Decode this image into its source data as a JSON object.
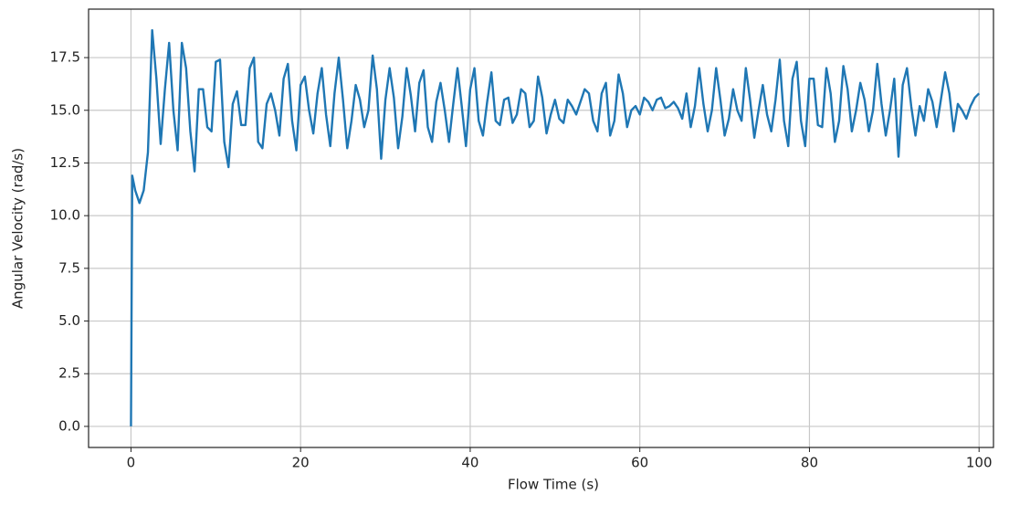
{
  "chart_data": {
    "type": "line",
    "xlabel": "Flow Time (s)",
    "ylabel": "Angular Velocity (rad/s)",
    "color": "#1f77b4",
    "grid": true,
    "xlim": [
      -5,
      101.7
    ],
    "ylim": [
      -1,
      19.8
    ],
    "xticks": [
      0,
      20,
      40,
      60,
      80,
      100
    ],
    "yticks": [
      {
        "value": 0,
        "label": "0.0"
      },
      2.5,
      {
        "value": 5,
        "label": "5.0"
      },
      7.5,
      {
        "value": 10,
        "label": "10.0"
      },
      12.5,
      {
        "value": 15,
        "label": "15.0"
      },
      17.5
    ],
    "x": [
      0,
      0.15,
      0.5,
      1,
      1.5,
      2,
      2.5,
      3,
      3.5,
      4,
      4.5,
      5,
      5.5,
      6,
      6.5,
      7,
      7.5,
      8,
      8.5,
      9,
      9.5,
      10,
      10.5,
      11,
      11.5,
      12,
      12.5,
      13,
      13.5,
      14,
      14.5,
      15,
      15.5,
      16,
      16.5,
      17,
      17.5,
      18,
      18.5,
      19,
      19.5,
      20,
      20.5,
      21,
      21.5,
      22,
      22.5,
      23,
      23.5,
      24,
      24.5,
      25,
      25.5,
      26,
      26.5,
      27,
      27.5,
      28,
      28.5,
      29,
      29.5,
      30,
      30.5,
      31,
      31.5,
      32,
      32.5,
      33,
      33.5,
      34,
      34.5,
      35,
      35.5,
      36,
      36.5,
      37,
      37.5,
      38,
      38.5,
      39,
      39.5,
      40,
      40.5,
      41,
      41.5,
      42,
      42.5,
      43,
      43.5,
      44,
      44.5,
      45,
      45.5,
      46,
      46.5,
      47,
      47.5,
      48,
      48.5,
      49,
      49.5,
      50,
      50.5,
      51,
      51.5,
      52,
      52.5,
      53,
      53.5,
      54,
      54.5,
      55,
      55.5,
      56,
      56.5,
      57,
      57.5,
      58,
      58.5,
      59,
      59.5,
      60,
      60.5,
      61,
      61.5,
      62,
      62.5,
      63,
      63.5,
      64,
      64.5,
      65,
      65.5,
      66,
      66.5,
      67,
      67.5,
      68,
      68.5,
      69,
      69.5,
      70,
      70.5,
      71,
      71.5,
      72,
      72.5,
      73,
      73.5,
      74,
      74.5,
      75,
      75.5,
      76,
      76.5,
      77,
      77.5,
      78,
      78.5,
      79,
      79.5,
      80,
      80.5,
      81,
      81.5,
      82,
      82.5,
      83,
      83.5,
      84,
      84.5,
      85,
      85.5,
      86,
      86.5,
      87,
      87.5,
      88,
      88.5,
      89,
      89.5,
      90,
      90.5,
      91,
      91.5,
      92,
      92.5,
      93,
      93.5,
      94,
      94.5,
      95,
      95.5,
      96,
      96.5,
      97,
      97.5,
      98,
      98.5,
      99,
      99.5,
      100
    ],
    "values": [
      0,
      11.9,
      11.2,
      10.6,
      11.2,
      13.0,
      18.8,
      16.5,
      13.4,
      16.0,
      18.2,
      15.0,
      13.1,
      18.2,
      17.0,
      14.0,
      12.1,
      16.0,
      16.0,
      14.2,
      14.0,
      17.3,
      17.4,
      13.5,
      12.3,
      15.3,
      15.9,
      14.3,
      14.3,
      17.0,
      17.5,
      13.5,
      13.2,
      15.3,
      15.8,
      15.0,
      13.8,
      16.5,
      17.2,
      14.5,
      13.1,
      16.2,
      16.6,
      15.0,
      13.9,
      15.8,
      17.0,
      14.8,
      13.3,
      15.8,
      17.5,
      15.5,
      13.2,
      14.5,
      16.2,
      15.5,
      14.2,
      15.0,
      17.6,
      16.0,
      12.7,
      15.5,
      17.0,
      15.6,
      13.2,
      14.7,
      17.0,
      15.7,
      14.0,
      16.3,
      16.9,
      14.2,
      13.5,
      15.4,
      16.3,
      15.0,
      13.5,
      15.3,
      17.0,
      15.2,
      13.3,
      16.0,
      17.0,
      14.5,
      13.8,
      15.4,
      16.8,
      14.5,
      14.3,
      15.5,
      15.6,
      14.4,
      14.8,
      16.0,
      15.8,
      14.2,
      14.5,
      16.6,
      15.6,
      13.9,
      14.8,
      15.5,
      14.6,
      14.4,
      15.5,
      15.2,
      14.8,
      15.4,
      16.0,
      15.8,
      14.5,
      14.0,
      15.8,
      16.3,
      13.8,
      14.5,
      16.7,
      15.8,
      14.2,
      15.0,
      15.2,
      14.8,
      15.6,
      15.4,
      15.0,
      15.5,
      15.6,
      15.1,
      15.2,
      15.4,
      15.1,
      14.6,
      15.8,
      14.2,
      15.2,
      17.0,
      15.3,
      14.0,
      15.0,
      17.0,
      15.5,
      13.8,
      14.6,
      16.0,
      15.0,
      14.5,
      17.0,
      15.5,
      13.7,
      15.0,
      16.2,
      14.8,
      14.0,
      15.5,
      17.4,
      14.5,
      13.3,
      16.5,
      17.3,
      14.5,
      13.3,
      16.5,
      16.5,
      14.3,
      14.2,
      17.0,
      15.8,
      13.5,
      14.5,
      17.1,
      16.0,
      14.0,
      15.0,
      16.3,
      15.5,
      14.0,
      15.0,
      17.2,
      15.3,
      13.8,
      15.0,
      16.5,
      12.8,
      16.2,
      17.0,
      15.2,
      13.8,
      15.2,
      14.5,
      16.0,
      15.4,
      14.2,
      15.5,
      16.8,
      15.8,
      14.0,
      15.3,
      15.0,
      14.6,
      15.2,
      15.6,
      15.8
    ]
  }
}
